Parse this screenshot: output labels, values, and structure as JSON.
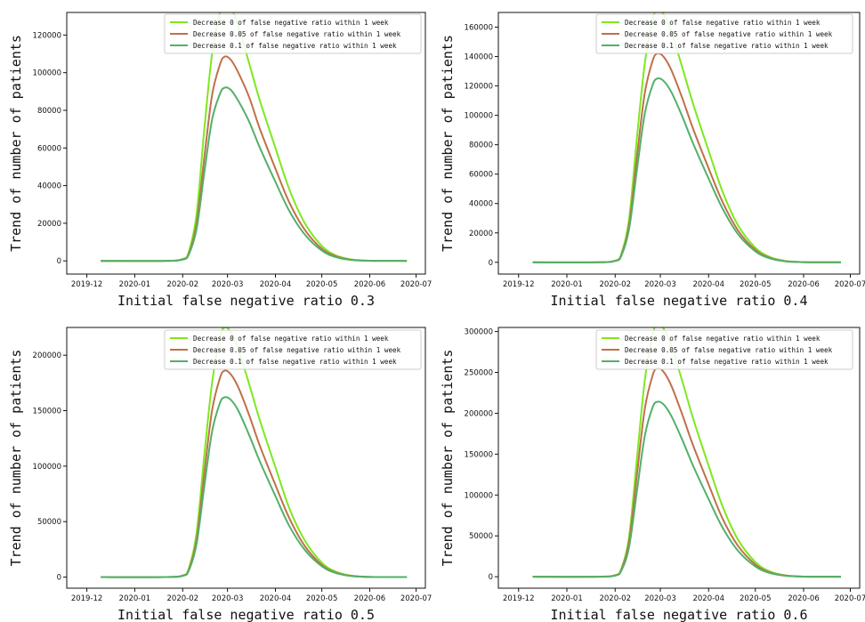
{
  "colors": {
    "decrease_0": "#7ee81f",
    "decrease_005": "#c0704a",
    "decrease_01": "#52b06a"
  },
  "chart_data": [
    {
      "type": "line",
      "xlabel": "Initial false negative ratio 0.3",
      "ylabel": "Trend of number of patients",
      "x_ticks": [
        "2019-12",
        "2020-01",
        "2020-02",
        "2020-03",
        "2020-04",
        "2020-05",
        "2020-06",
        "2020-07"
      ],
      "y_ticks": [
        "0",
        "20000",
        "40000",
        "60000",
        "80000",
        "100000",
        "120000"
      ],
      "ylim": [
        -7000,
        132000
      ],
      "xlim": [
        "2019-11-18",
        "2020-07-07"
      ],
      "legend_position": "top-right",
      "grid": false,
      "series": [
        {
          "name": "Decrease 0 of false negative ratio within 1 week",
          "x": [
            "2019-12-10",
            "2020-01-20",
            "2020-02-01",
            "2020-02-05",
            "2020-02-10",
            "2020-02-15",
            "2020-02-20",
            "2020-02-25",
            "2020-02-28",
            "2020-03-03",
            "2020-03-08",
            "2020-03-15",
            "2020-03-22",
            "2020-04-01",
            "2020-04-10",
            "2020-04-20",
            "2020-05-01",
            "2020-05-10",
            "2020-05-20",
            "2020-06-01",
            "2020-06-25"
          ],
          "y": [
            0,
            0,
            1000,
            5000,
            25000,
            70000,
            110000,
            132000,
            138000,
            135000,
            125000,
            105000,
            85000,
            60000,
            38000,
            20000,
            8000,
            3000,
            800,
            100,
            0
          ]
        },
        {
          "name": "Decrease 0.05 of false negative ratio within 1 week",
          "x": [
            "2019-12-10",
            "2020-01-20",
            "2020-02-01",
            "2020-02-05",
            "2020-02-10",
            "2020-02-15",
            "2020-02-20",
            "2020-02-25",
            "2020-02-28",
            "2020-03-03",
            "2020-03-08",
            "2020-03-15",
            "2020-03-22",
            "2020-04-01",
            "2020-04-10",
            "2020-04-20",
            "2020-05-01",
            "2020-05-10",
            "2020-05-20",
            "2020-06-01",
            "2020-06-25"
          ],
          "y": [
            0,
            0,
            800,
            4000,
            20000,
            55000,
            88000,
            104000,
            108500,
            107000,
            100000,
            87000,
            70000,
            49000,
            31000,
            16500,
            6500,
            2500,
            600,
            80,
            0
          ]
        },
        {
          "name": "Decrease 0.1 of false negative ratio within 1 week",
          "x": [
            "2019-12-10",
            "2020-01-20",
            "2020-02-01",
            "2020-02-05",
            "2020-02-10",
            "2020-02-15",
            "2020-02-20",
            "2020-02-25",
            "2020-02-28",
            "2020-03-03",
            "2020-03-08",
            "2020-03-15",
            "2020-03-22",
            "2020-04-01",
            "2020-04-10",
            "2020-04-20",
            "2020-05-01",
            "2020-05-10",
            "2020-05-20",
            "2020-06-01",
            "2020-06-25"
          ],
          "y": [
            0,
            0,
            700,
            3500,
            17000,
            47000,
            75000,
            88500,
            92000,
            91000,
            85000,
            74000,
            60000,
            42000,
            26500,
            14000,
            5500,
            2000,
            500,
            60,
            0
          ]
        }
      ]
    },
    {
      "type": "line",
      "xlabel": "Initial false negative ratio 0.4",
      "ylabel": "Trend of number of patients",
      "x_ticks": [
        "2019-12",
        "2020-01",
        "2020-02",
        "2020-03",
        "2020-04",
        "2020-05",
        "2020-06",
        "2020-07"
      ],
      "y_ticks": [
        "0",
        "20000",
        "40000",
        "60000",
        "80000",
        "100000",
        "120000",
        "140000",
        "160000"
      ],
      "ylim": [
        -8000,
        170000
      ],
      "xlim": [
        "2019-11-18",
        "2020-07-07"
      ],
      "legend_position": "top-right",
      "grid": false,
      "series": [
        {
          "name": "Decrease 0 of false negative ratio within 1 week",
          "x": [
            "2019-12-10",
            "2020-01-20",
            "2020-02-01",
            "2020-02-05",
            "2020-02-10",
            "2020-02-15",
            "2020-02-20",
            "2020-02-25",
            "2020-02-28",
            "2020-03-03",
            "2020-03-08",
            "2020-03-15",
            "2020-03-22",
            "2020-04-01",
            "2020-04-10",
            "2020-04-20",
            "2020-05-01",
            "2020-05-10",
            "2020-05-20",
            "2020-06-01",
            "2020-06-25"
          ],
          "y": [
            0,
            0,
            1200,
            6000,
            30000,
            85000,
            135000,
            165000,
            172000,
            169000,
            157000,
            133000,
            108000,
            76000,
            48000,
            25000,
            10000,
            3800,
            1000,
            120,
            0
          ]
        },
        {
          "name": "Decrease 0.05 of false negative ratio within 1 week",
          "x": [
            "2019-12-10",
            "2020-01-20",
            "2020-02-01",
            "2020-02-05",
            "2020-02-10",
            "2020-02-15",
            "2020-02-20",
            "2020-02-25",
            "2020-02-28",
            "2020-03-03",
            "2020-03-08",
            "2020-03-15",
            "2020-03-22",
            "2020-04-01",
            "2020-04-10",
            "2020-04-20",
            "2020-05-01",
            "2020-05-10",
            "2020-05-20",
            "2020-06-01",
            "2020-06-25"
          ],
          "y": [
            0,
            0,
            1000,
            5000,
            26000,
            72000,
            115000,
            137000,
            142000,
            140000,
            131000,
            112000,
            91000,
            64000,
            41000,
            21500,
            8500,
            3200,
            800,
            100,
            0
          ]
        },
        {
          "name": "Decrease 0.1 of false negative ratio within 1 week",
          "x": [
            "2019-12-10",
            "2020-01-20",
            "2020-02-01",
            "2020-02-05",
            "2020-02-10",
            "2020-02-15",
            "2020-02-20",
            "2020-02-25",
            "2020-02-28",
            "2020-03-03",
            "2020-03-08",
            "2020-03-15",
            "2020-03-22",
            "2020-04-01",
            "2020-04-10",
            "2020-04-20",
            "2020-05-01",
            "2020-05-10",
            "2020-05-20",
            "2020-06-01",
            "2020-06-25"
          ],
          "y": [
            0,
            0,
            900,
            4500,
            23000,
            63000,
            101000,
            120500,
            125000,
            123500,
            116000,
            99500,
            81000,
            57000,
            36500,
            19000,
            7500,
            2800,
            700,
            90,
            0
          ]
        }
      ]
    },
    {
      "type": "line",
      "xlabel": "Initial false negative ratio 0.5",
      "ylabel": "Trend of number of patients",
      "x_ticks": [
        "2019-12",
        "2020-01",
        "2020-02",
        "2020-03",
        "2020-04",
        "2020-05",
        "2020-06",
        "2020-07"
      ],
      "y_ticks": [
        "0",
        "50000",
        "100000",
        "150000",
        "200000"
      ],
      "ylim": [
        -10000,
        225000
      ],
      "xlim": [
        "2019-11-18",
        "2020-07-07"
      ],
      "legend_position": "top-right",
      "grid": false,
      "series": [
        {
          "name": "Decrease 0 of false negative ratio within 1 week",
          "x": [
            "2019-12-10",
            "2020-01-20",
            "2020-02-01",
            "2020-02-05",
            "2020-02-10",
            "2020-02-15",
            "2020-02-20",
            "2020-02-25",
            "2020-02-28",
            "2020-03-03",
            "2020-03-08",
            "2020-03-15",
            "2020-03-22",
            "2020-04-01",
            "2020-04-10",
            "2020-04-20",
            "2020-05-01",
            "2020-05-10",
            "2020-05-20",
            "2020-06-01",
            "2020-06-25"
          ],
          "y": [
            0,
            0,
            1500,
            8000,
            40000,
            110000,
            175000,
            215000,
            225000,
            221000,
            205000,
            174000,
            141000,
            99000,
            62000,
            33000,
            13000,
            5000,
            1300,
            150,
            0
          ]
        },
        {
          "name": "Decrease 0.05 of false negative ratio within 1 week",
          "x": [
            "2019-12-10",
            "2020-01-20",
            "2020-02-01",
            "2020-02-05",
            "2020-02-10",
            "2020-02-15",
            "2020-02-20",
            "2020-02-25",
            "2020-02-28",
            "2020-03-03",
            "2020-03-08",
            "2020-03-15",
            "2020-03-22",
            "2020-04-01",
            "2020-04-10",
            "2020-04-20",
            "2020-05-01",
            "2020-05-10",
            "2020-05-20",
            "2020-06-01",
            "2020-06-25"
          ],
          "y": [
            0,
            0,
            1300,
            7000,
            34000,
            94000,
            150000,
            179000,
            186000,
            183000,
            171000,
            146000,
            118000,
            83000,
            53000,
            28000,
            11000,
            4200,
            1100,
            130,
            0
          ]
        },
        {
          "name": "Decrease 0.1 of false negative ratio within 1 week",
          "x": [
            "2019-12-10",
            "2020-01-20",
            "2020-02-01",
            "2020-02-05",
            "2020-02-10",
            "2020-02-15",
            "2020-02-20",
            "2020-02-25",
            "2020-02-28",
            "2020-03-03",
            "2020-03-08",
            "2020-03-15",
            "2020-03-22",
            "2020-04-01",
            "2020-04-10",
            "2020-04-20",
            "2020-05-01",
            "2020-05-10",
            "2020-05-20",
            "2020-06-01",
            "2020-06-25"
          ],
          "y": [
            0,
            0,
            1100,
            6000,
            30000,
            82000,
            131000,
            156500,
            162000,
            160000,
            150000,
            128000,
            104000,
            73000,
            46000,
            24500,
            9800,
            3700,
            950,
            110,
            0
          ]
        }
      ]
    },
    {
      "type": "line",
      "xlabel": "Initial false negative ratio 0.6",
      "ylabel": "Trend of number of patients",
      "x_ticks": [
        "2019-12",
        "2020-01",
        "2020-02",
        "2020-03",
        "2020-04",
        "2020-05",
        "2020-06",
        "2020-07"
      ],
      "y_ticks": [
        "0",
        "50000",
        "100000",
        "150000",
        "200000",
        "250000",
        "300000"
      ],
      "ylim": [
        -14000,
        305000
      ],
      "xlim": [
        "2019-11-18",
        "2020-07-07"
      ],
      "legend_position": "top-right",
      "grid": false,
      "series": [
        {
          "name": "Decrease 0 of false negative ratio within 1 week",
          "x": [
            "2019-12-10",
            "2020-01-20",
            "2020-02-01",
            "2020-02-05",
            "2020-02-10",
            "2020-02-15",
            "2020-02-20",
            "2020-02-25",
            "2020-02-28",
            "2020-03-03",
            "2020-03-08",
            "2020-03-15",
            "2020-03-22",
            "2020-04-01",
            "2020-04-10",
            "2020-04-20",
            "2020-05-01",
            "2020-05-10",
            "2020-05-20",
            "2020-06-01",
            "2020-06-25"
          ],
          "y": [
            0,
            0,
            2000,
            10000,
            50000,
            145000,
            240000,
            295000,
            310000,
            304000,
            283000,
            240000,
            194000,
            136000,
            86000,
            45000,
            18000,
            6800,
            1800,
            200,
            0
          ]
        },
        {
          "name": "Decrease 0.05 of false negative ratio within 1 week",
          "x": [
            "2019-12-10",
            "2020-01-20",
            "2020-02-01",
            "2020-02-05",
            "2020-02-10",
            "2020-02-15",
            "2020-02-20",
            "2020-02-25",
            "2020-02-28",
            "2020-03-03",
            "2020-03-08",
            "2020-03-15",
            "2020-03-22",
            "2020-04-01",
            "2020-04-10",
            "2020-04-20",
            "2020-05-01",
            "2020-05-10",
            "2020-05-20",
            "2020-06-01",
            "2020-06-25"
          ],
          "y": [
            0,
            0,
            1700,
            9000,
            44000,
            125000,
            205000,
            246000,
            255000,
            251000,
            234000,
            199000,
            161000,
            113000,
            71000,
            37500,
            15000,
            5600,
            1500,
            170,
            0
          ]
        },
        {
          "name": "Decrease 0.1 of false negative ratio within 1 week",
          "x": [
            "2019-12-10",
            "2020-01-20",
            "2020-02-01",
            "2020-02-05",
            "2020-02-10",
            "2020-02-15",
            "2020-02-20",
            "2020-02-25",
            "2020-02-28",
            "2020-03-03",
            "2020-03-08",
            "2020-03-15",
            "2020-03-22",
            "2020-04-01",
            "2020-04-10",
            "2020-04-20",
            "2020-05-01",
            "2020-05-10",
            "2020-05-20",
            "2020-06-01",
            "2020-06-25"
          ],
          "y": [
            0,
            0,
            1400,
            7500,
            37000,
            105000,
            172000,
            207000,
            214000,
            211000,
            197000,
            168000,
            136000,
            95000,
            60000,
            31500,
            12600,
            4700,
            1250,
            140,
            0
          ]
        }
      ]
    }
  ]
}
